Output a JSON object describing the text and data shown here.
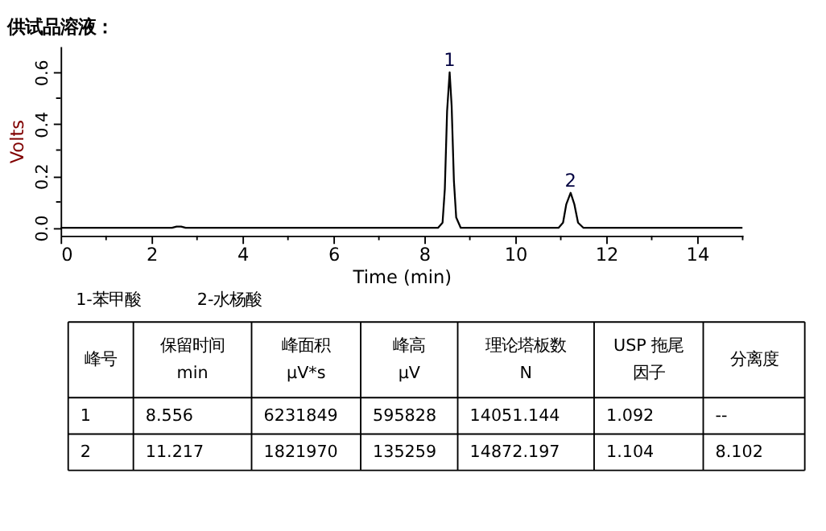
{
  "chart_data": {
    "type": "line",
    "title": "供试品溶液：",
    "xlabel": "Time (min)",
    "ylabel": "Volts",
    "x": [
      0,
      2.45,
      2.55,
      2.65,
      2.75,
      8.3,
      8.4,
      8.45,
      8.5,
      8.556,
      8.6,
      8.65,
      8.7,
      8.8,
      10.95,
      11.05,
      11.12,
      11.217,
      11.3,
      11.38,
      11.5,
      15
    ],
    "series": [
      {
        "color": "#000000",
        "values": [
          0,
          0,
          0.005,
          0.005,
          0,
          0,
          0.02,
          0.15,
          0.45,
          0.6,
          0.47,
          0.18,
          0.04,
          0,
          0,
          0.02,
          0.09,
          0.135,
          0.09,
          0.02,
          0,
          0
        ]
      }
    ],
    "xlim": [
      0,
      15
    ],
    "ylim": [
      -0.03,
      0.7
    ],
    "xticks": [
      0,
      {
        "value": 1,
        "label": null
      },
      2,
      {
        "value": 3,
        "label": null
      },
      4,
      {
        "value": 5,
        "label": null
      },
      6,
      {
        "value": 7,
        "label": null
      },
      8,
      {
        "value": 9,
        "label": null
      },
      10,
      {
        "value": 11,
        "label": null
      },
      12,
      {
        "value": 13,
        "label": null
      },
      14,
      {
        "value": 15,
        "label": null
      }
    ],
    "yticks": [
      {
        "value": 0,
        "label": "0.0"
      },
      {
        "value": 0.1,
        "label": null
      },
      {
        "value": 0.2,
        "label": "0.2"
      },
      {
        "value": 0.3,
        "label": null
      },
      {
        "value": 0.4,
        "label": "0.4"
      },
      {
        "value": 0.5,
        "label": null
      },
      {
        "value": 0.6,
        "label": "0.6"
      }
    ],
    "grid": false,
    "marker": "none",
    "line_style": "solid",
    "annotations": [
      {
        "text": "1",
        "x": 8.556,
        "y": 0.6
      },
      {
        "text": "2",
        "x": 11.217,
        "y": 0.135
      },
      "1-苯甲酸",
      "2-水杨酸",
      "峰号",
      "保留时间",
      "峰面积",
      "峰高",
      "理论塔板数",
      "USP 拖尾",
      "分离度",
      "min",
      "μV*s",
      "μV",
      "N",
      "因子",
      "1",
      "8.556",
      "6231849",
      "595828",
      "14051.144",
      "1.092",
      "--",
      "2",
      "11.217",
      "1821970",
      "135259",
      "14872.197",
      "1.104",
      "8.102"
    ]
  }
}
